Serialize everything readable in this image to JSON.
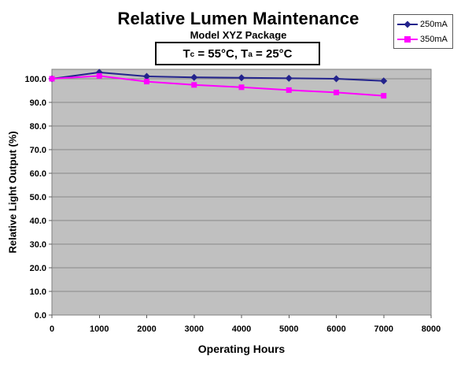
{
  "title": "Relative Lumen Maintenance",
  "subtitle": "Model XYZ Package",
  "condition": {
    "t1_base": "T",
    "t1_sub": "c",
    "t1_text": " = 55°C, ",
    "t2_base": "T",
    "t2_sub": "a",
    "t2_text": " = 25°C"
  },
  "colors": {
    "series_250mA": "#23238C",
    "series_350mA": "#FF00FF",
    "plot_background": "#C0C0C0",
    "gridline": "#878787",
    "plot_border": "#7F7F7F",
    "tick": "#595959"
  },
  "chart_data": {
    "type": "line",
    "title": "Relative Lumen Maintenance",
    "subtitle": "Model XYZ Package",
    "annotation": "Tc = 55°C, Ta = 25°C",
    "xlabel": "Operating Hours",
    "ylabel": "Relative Light Output (%)",
    "x": [
      0,
      1000,
      2000,
      3000,
      4000,
      5000,
      6000,
      7000
    ],
    "series": [
      {
        "name": "250mA",
        "color": "#23238C",
        "marker": "diamond",
        "values": [
          100.0,
          102.7,
          101.0,
          100.6,
          100.4,
          100.2,
          100.0,
          99.1
        ]
      },
      {
        "name": "350mA",
        "color": "#FF00FF",
        "marker": "square",
        "values": [
          100.0,
          101.2,
          98.8,
          97.4,
          96.4,
          95.2,
          94.2,
          92.8
        ]
      }
    ],
    "xlim": [
      0,
      8000
    ],
    "ylim": [
      0,
      104
    ],
    "xticks": [
      0,
      1000,
      2000,
      3000,
      4000,
      5000,
      6000,
      7000,
      8000
    ],
    "yticks": [
      0,
      10,
      20,
      30,
      40,
      50,
      60,
      70,
      80,
      90,
      100
    ],
    "ytick_labels": [
      "0.0",
      "10.0",
      "20.0",
      "30.0",
      "40.0",
      "50.0",
      "60.0",
      "70.0",
      "80.0",
      "90.0",
      "100.0"
    ],
    "grid": "horizontal",
    "plot_bg": "#C0C0C0",
    "legend_position": "top-right",
    "legend": [
      "250mA",
      "350mA"
    ]
  }
}
